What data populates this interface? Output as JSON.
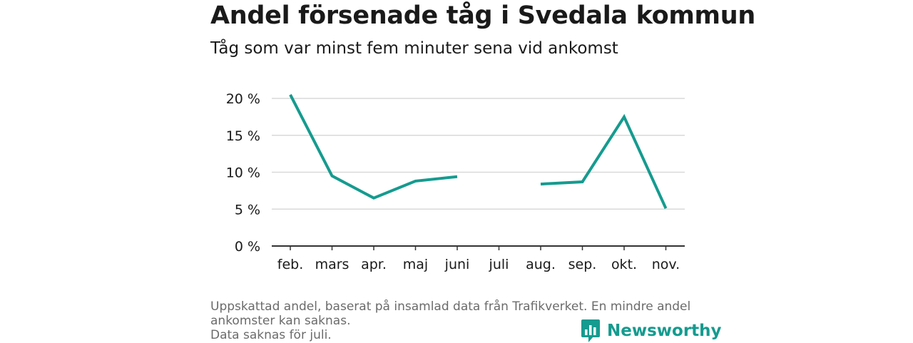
{
  "title": "Andel försenade tåg i Svedala kommun",
  "subtitle": "Tåg som var minst fem minuter sena vid ankomst",
  "footnote": {
    "line1": "Uppskattad andel, baserat på insamlad data från Trafikverket. En mindre andel",
    "line2": "ankomster kan saknas.",
    "line3": "Data saknas för juli."
  },
  "brand": {
    "name": "Newsworthy",
    "icon": "bar-chart-speech-bubble-icon",
    "color": "#159b8f"
  },
  "chart_data": {
    "type": "line",
    "categories": [
      "feb.",
      "mars",
      "apr.",
      "maj",
      "juni",
      "juli",
      "aug.",
      "sep.",
      "okt.",
      "nov."
    ],
    "series": [
      {
        "values": [
          20.5,
          9.5,
          6.5,
          8.8,
          9.4,
          null,
          8.4,
          8.7,
          17.5,
          5.1
        ],
        "color": "#159b8f"
      }
    ],
    "y_ticks": [
      0,
      5,
      10,
      15,
      20
    ],
    "y_tick_labels": [
      "0 %",
      "5 %",
      "10 %",
      "15 %",
      "20 %"
    ],
    "ylim": [
      0,
      20
    ],
    "grid": true
  }
}
